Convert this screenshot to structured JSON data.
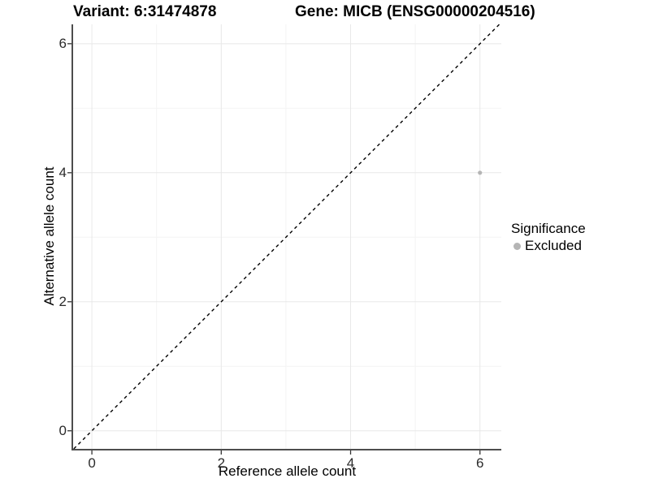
{
  "titles": {
    "left": "Variant: 6:31474878",
    "right": "Gene: MICB (ENSG00000204516)"
  },
  "chart_data": {
    "type": "scatter",
    "xlabel": "Reference allele count",
    "ylabel": "Alternative allele count",
    "xlim": [
      -0.29,
      6.33
    ],
    "ylim": [
      -0.28,
      6.3
    ],
    "xticks": [
      0,
      2,
      4,
      6
    ],
    "yticks": [
      0,
      2,
      4,
      6
    ],
    "minor_ticks": [
      1,
      3,
      5
    ],
    "grid": "major+minor",
    "series": [
      {
        "name": "Excluded",
        "color": "#b5b5b5",
        "points": [
          [
            6,
            4
          ]
        ]
      }
    ],
    "reference_line": {
      "kind": "identity y=x",
      "style": "dashed",
      "color": "#000000"
    },
    "legend": {
      "title": "Significance",
      "position": "right",
      "items": [
        {
          "label": "Excluded",
          "color": "#b5b5b5"
        }
      ]
    }
  },
  "colors": {
    "axis_line": "#4d4d4d",
    "grid_major": "#e8e8e8",
    "grid_minor": "#f4f4f4",
    "tick_mark": "#333333",
    "point": "#b5b5b5"
  }
}
